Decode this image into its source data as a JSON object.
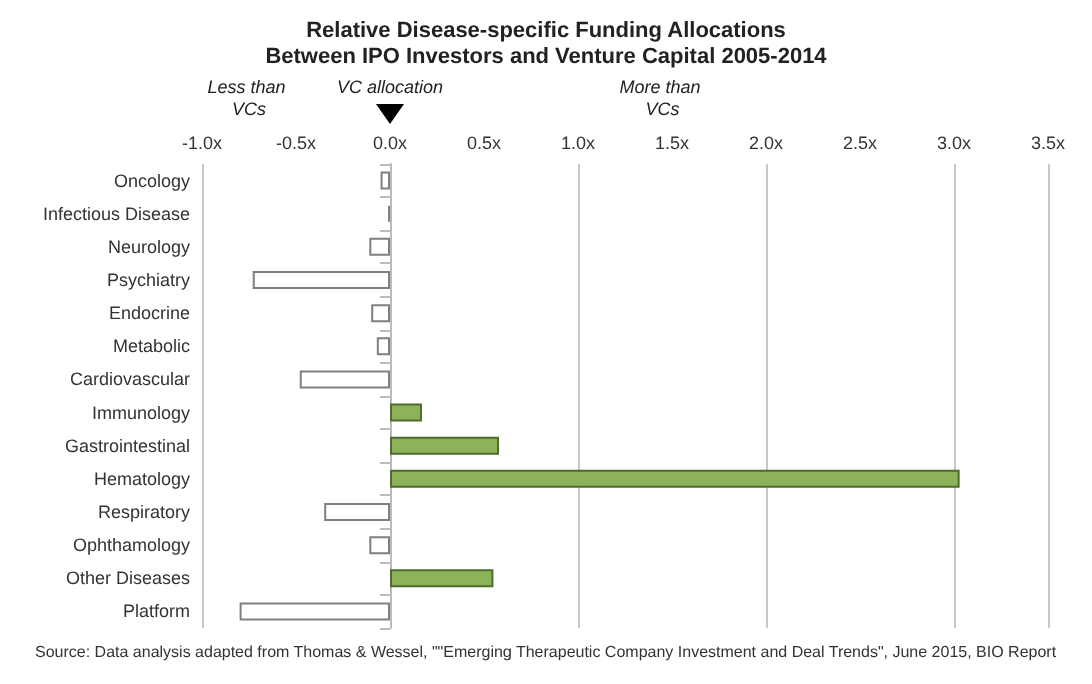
{
  "chart_data": {
    "type": "bar",
    "orientation": "horizontal",
    "title": "Relative Disease-specific Funding Allocations\nBetween IPO Investors and Venture Capital 2005-2014",
    "categories": [
      "Oncology",
      "Infectious Disease",
      "Neurology",
      "Psychiatry",
      "Endocrine",
      "Metabolic",
      "Cardiovascular",
      "Immunology",
      "Gastrointestinal",
      "Hematology",
      "Respiratory",
      "Ophthamology",
      "Other Diseases",
      "Platform"
    ],
    "values": [
      -0.05,
      -0.01,
      -0.11,
      -0.73,
      -0.1,
      -0.07,
      -0.48,
      0.17,
      0.58,
      3.03,
      -0.35,
      -0.11,
      0.55,
      -0.8
    ],
    "colors": [
      "#ffffff",
      "#7f7f7f",
      "#ffffff",
      "#ffffff",
      "#ffffff",
      "#ffffff",
      "#ffffff",
      "#8db35a",
      "#8db35a",
      "#8db35a",
      "#ffffff",
      "#ffffff",
      "#8db35a",
      "#ffffff"
    ],
    "xlim": [
      -1,
      3.5
    ],
    "xticks": [
      {
        "value": -1,
        "label": "-1.0x"
      },
      {
        "value": -0.5,
        "label": "-0.5x"
      },
      {
        "value": 0,
        "label": "0.0x"
      },
      {
        "value": 0.5,
        "label": "0.5x"
      },
      {
        "value": 1,
        "label": "1.0x"
      },
      {
        "value": 1.5,
        "label": "1.5x"
      },
      {
        "value": 2,
        "label": "2.0x"
      },
      {
        "value": 2.5,
        "label": "2.5x"
      },
      {
        "value": 3,
        "label": "3.0x"
      },
      {
        "value": 3.5,
        "label": "3.5x"
      }
    ],
    "grid": "x",
    "annotations": [
      "Less than VCs",
      "VC allocation",
      "More than VCs",
      "Source: Data analysis adapted from Thomas & Wessel, \"\"Emerging Therapeutic Company Investment and Deal Trends\", June 2015, BIO Report"
    ]
  }
}
